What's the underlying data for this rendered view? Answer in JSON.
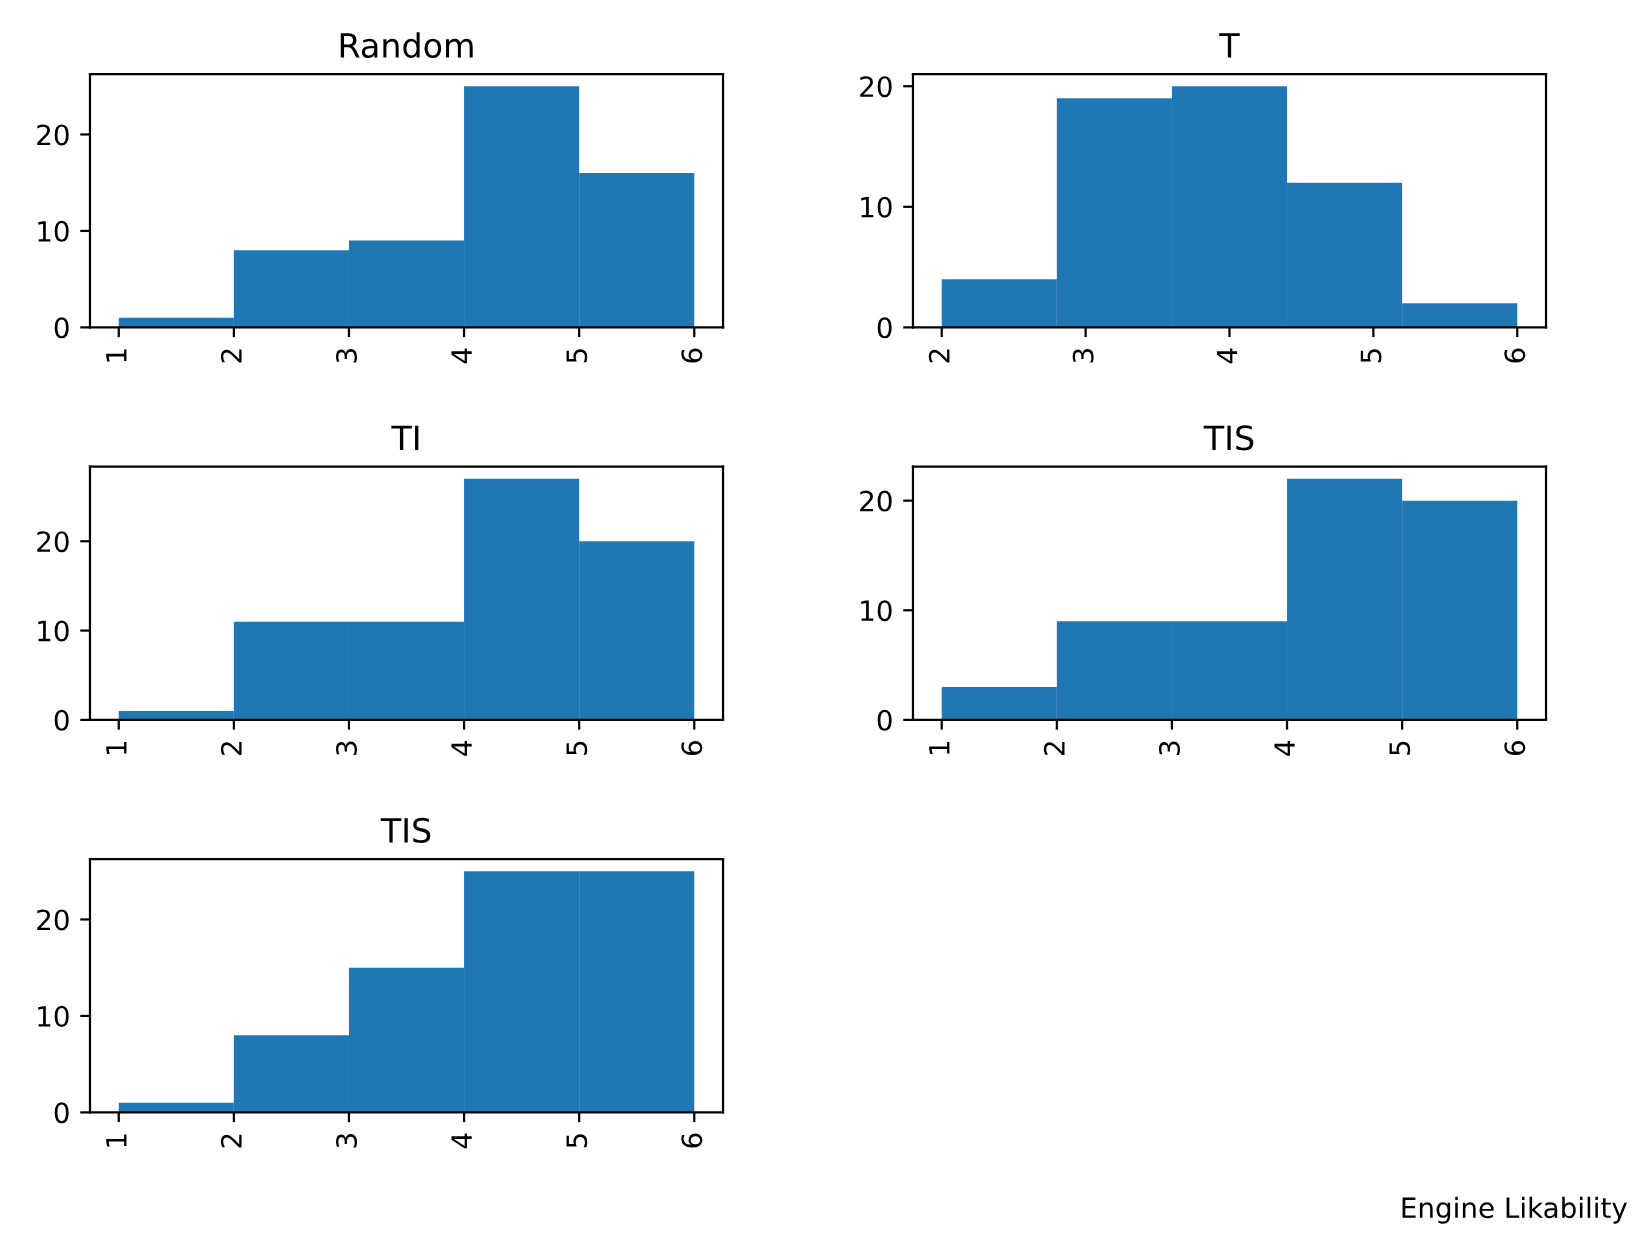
{
  "chart_data": [
    {
      "type": "histogram",
      "title": "Random",
      "bins": [
        1,
        2,
        3,
        4,
        5,
        6
      ],
      "values": [
        1,
        8,
        9,
        25,
        16
      ],
      "color": "#1f77b4",
      "xlim": [
        0.75,
        6.25
      ],
      "ylim": [
        0,
        26.25
      ],
      "xticks": [
        1,
        2,
        3,
        4,
        5,
        6
      ],
      "yticks": [
        0,
        10,
        20
      ]
    },
    {
      "type": "histogram",
      "title": "T",
      "bins": [
        2,
        2.8,
        3.6,
        4.4,
        5.2,
        6
      ],
      "values": [
        4,
        19,
        20,
        12,
        2
      ],
      "color": "#1f77b4",
      "xlim": [
        1.8,
        6.2
      ],
      "ylim": [
        0,
        21
      ],
      "xticks": [
        2,
        3,
        4,
        5,
        6
      ],
      "yticks": [
        0,
        10,
        20
      ]
    },
    {
      "type": "histogram",
      "title": "TI",
      "bins": [
        1,
        2,
        3,
        4,
        5,
        6
      ],
      "values": [
        1,
        11,
        11,
        27,
        20
      ],
      "color": "#1f77b4",
      "xlim": [
        0.75,
        6.25
      ],
      "ylim": [
        0,
        28.35
      ],
      "xticks": [
        1,
        2,
        3,
        4,
        5,
        6
      ],
      "yticks": [
        0,
        10,
        20
      ]
    },
    {
      "type": "histogram",
      "title": "TIS",
      "bins": [
        1,
        2,
        3,
        4,
        5,
        6
      ],
      "values": [
        3,
        9,
        9,
        22,
        20
      ],
      "color": "#1f77b4",
      "xlim": [
        0.75,
        6.25
      ],
      "ylim": [
        0,
        23.1
      ],
      "xticks": [
        1,
        2,
        3,
        4,
        5,
        6
      ],
      "yticks": [
        0,
        10,
        20
      ]
    },
    {
      "type": "histogram",
      "title": "TIS",
      "bins": [
        1,
        2,
        3,
        4,
        5,
        6
      ],
      "values": [
        1,
        8,
        15,
        25,
        25
      ],
      "color": "#1f77b4",
      "xlim": [
        0.75,
        6.25
      ],
      "ylim": [
        0,
        26.25
      ],
      "xticks": [
        1,
        2,
        3,
        4,
        5,
        6
      ],
      "yticks": [
        0,
        10,
        20
      ],
      "annotations": [
        "Engine Likability"
      ]
    }
  ]
}
